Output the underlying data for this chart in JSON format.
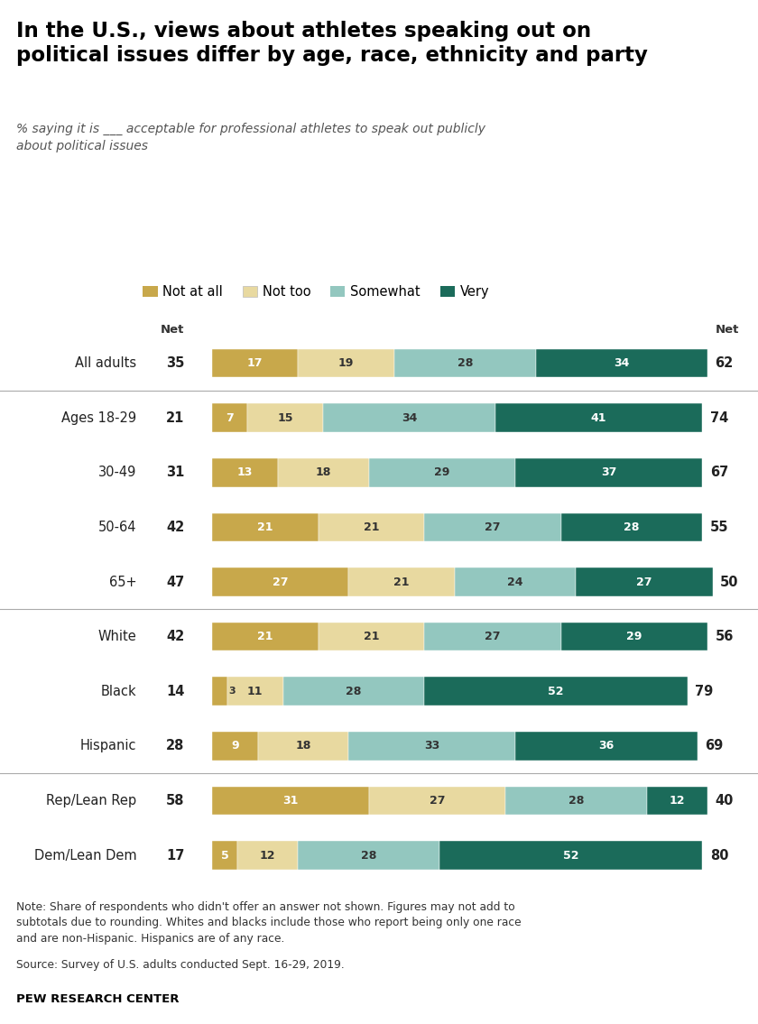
{
  "title": "In the U.S., views about athletes speaking out on\npolitical issues differ by age, race, ethnicity and party",
  "subtitle": "% saying it is ___ acceptable for professional athletes to speak out publicly\nabout political issues",
  "categories": [
    "All adults",
    "Ages 18-29",
    "30-49",
    "50-64",
    "65+",
    "White",
    "Black",
    "Hispanic",
    "Rep/Lean Rep",
    "Dem/Lean Dem"
  ],
  "not_at_all": [
    17,
    7,
    13,
    21,
    27,
    21,
    3,
    9,
    31,
    5
  ],
  "not_too": [
    19,
    15,
    18,
    21,
    21,
    21,
    11,
    18,
    27,
    12
  ],
  "somewhat": [
    28,
    34,
    29,
    27,
    24,
    27,
    28,
    33,
    28,
    28
  ],
  "very": [
    34,
    41,
    37,
    28,
    27,
    29,
    52,
    36,
    12,
    52
  ],
  "net_left": [
    35,
    21,
    31,
    42,
    47,
    42,
    14,
    28,
    58,
    17
  ],
  "net_right": [
    62,
    74,
    67,
    55,
    50,
    56,
    79,
    69,
    40,
    80
  ],
  "colors": {
    "not_at_all": "#C8A84B",
    "not_too": "#E8D9A0",
    "somewhat": "#93C7BF",
    "very": "#1B6B5A"
  },
  "separators_after": [
    0,
    4,
    7
  ],
  "note": "Note: Share of respondents who didn't offer an answer not shown. Figures may not add to\nsubtotals due to rounding. Whites and blacks include those who report being only one race\nand are non-Hispanic. Hispanics are of any race.",
  "source": "Source: Survey of U.S. adults conducted Sept. 16-29, 2019.",
  "credit": "PEW RESEARCH CENTER",
  "background_color": "#FFFFFF"
}
